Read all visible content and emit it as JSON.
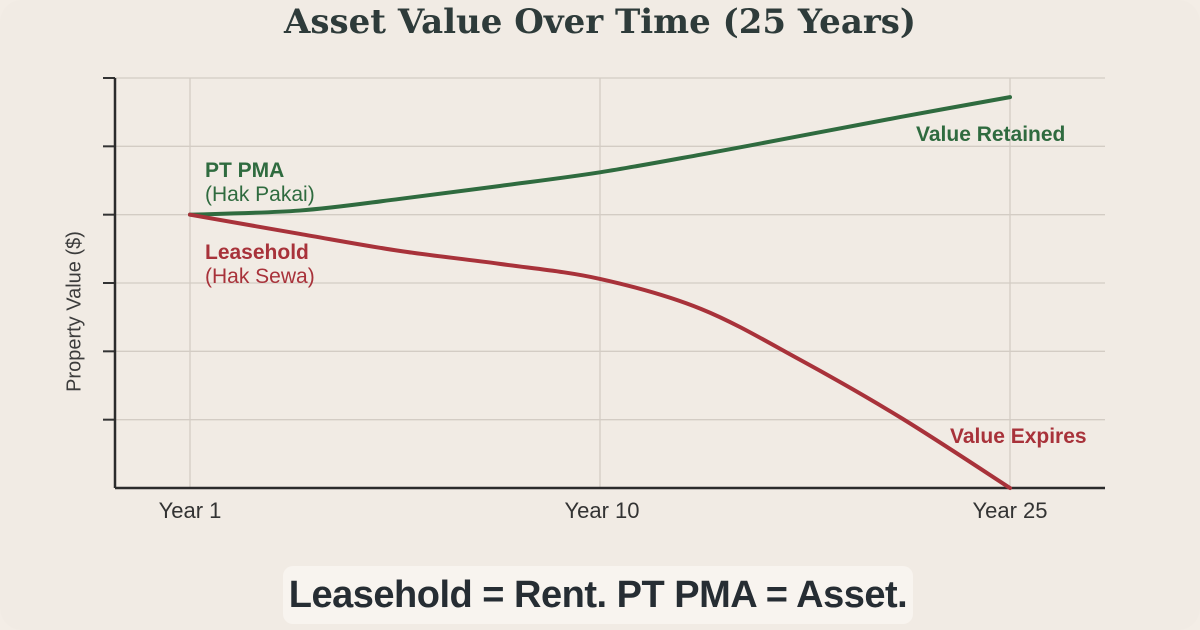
{
  "chart_data": {
    "type": "line",
    "title": "Asset Value Over Time (25 Years)",
    "xlabel": "",
    "ylabel": "Property Value ($)",
    "x_ticks": [
      {
        "value": 1,
        "label": "Year 1"
      },
      {
        "value": 10,
        "label": "Year 10"
      },
      {
        "value": 25,
        "label": "Year 25"
      }
    ],
    "ylim": [
      0,
      6
    ],
    "y_tick_labels": "none",
    "grid": true,
    "series": [
      {
        "name": "PT PMA",
        "subtitle": "(Hak Pakai)",
        "end_label": "Value Retained",
        "color": "#2f6b3f",
        "x": [
          1,
          3.4,
          5.6,
          7.8,
          10,
          13.7,
          17.3,
          21,
          25
        ],
        "y": [
          4.0,
          4.06,
          4.23,
          4.42,
          4.62,
          4.88,
          5.15,
          5.43,
          5.72
        ]
      },
      {
        "name": "Leasehold",
        "subtitle": "(Hak Sewa)",
        "end_label": "Value Expires",
        "color": "#a8323a",
        "x": [
          1,
          3.4,
          5.6,
          7.8,
          10,
          13.7,
          17.3,
          21,
          25
        ],
        "y": [
          4.0,
          3.72,
          3.47,
          3.28,
          3.06,
          2.62,
          1.88,
          1.03,
          0
        ]
      }
    ]
  },
  "footer": "Leasehold = Rent. PT PMA = Asset."
}
